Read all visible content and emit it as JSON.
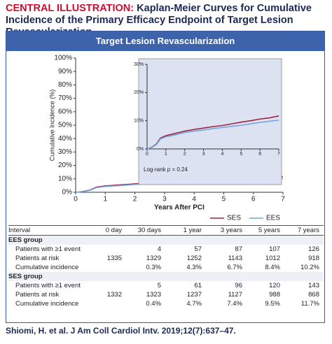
{
  "header": {
    "label": "CENTRAL ILLUSTRATION:",
    "title": "Kaplan-Meier Curves for Cumulative Incidence of the Primary Efficacy Endpoint of Target Lesion Revascularization"
  },
  "panel_title": "Target Lesion Revascularization",
  "chart_data": [
    {
      "type": "line",
      "x": [
        0,
        0.1,
        0.3,
        0.5,
        0.7,
        1,
        1.5,
        2,
        2.5,
        3,
        3.5,
        4,
        4.5,
        5,
        5.5,
        6,
        6.5,
        7
      ],
      "series": [
        {
          "name": "SES",
          "color": "#a3213e",
          "values": [
            0,
            0.2,
            0.8,
            1.8,
            3.8,
            4.7,
            5.5,
            6.3,
            6.9,
            7.4,
            7.9,
            8.3,
            8.9,
            9.5,
            10.0,
            10.6,
            11.0,
            11.7
          ]
        },
        {
          "name": "EES",
          "color": "#6fa8dc",
          "values": [
            0,
            0.2,
            0.7,
            1.6,
            3.5,
            4.3,
            5.0,
            5.8,
            6.3,
            6.7,
            7.2,
            7.6,
            8.0,
            8.4,
            8.9,
            9.4,
            9.8,
            10.2
          ]
        }
      ],
      "xlim": [
        0,
        7
      ],
      "ylim": [
        0,
        100
      ],
      "xticks": [
        0,
        1,
        2,
        3,
        4,
        5,
        6,
        7
      ],
      "yticks": [
        {
          "value": 0,
          "label": "0%"
        },
        {
          "value": 10,
          "label": "10%"
        },
        {
          "value": 20,
          "label": "20%"
        },
        {
          "value": 30,
          "label": "30%"
        },
        {
          "value": 40,
          "label": "40%"
        },
        {
          "value": 50,
          "label": "50%"
        },
        {
          "value": 60,
          "label": "60%"
        },
        {
          "value": 70,
          "label": "70%"
        },
        {
          "value": 80,
          "label": "80%"
        },
        {
          "value": 90,
          "label": "90%"
        },
        {
          "value": 100,
          "label": "100%"
        }
      ],
      "x_label": "Years After PCI",
      "y_label": "Cumulative Incidence (%)",
      "legend": "bottom-right"
    },
    {
      "type": "line",
      "x": [
        0,
        0.1,
        0.3,
        0.5,
        0.7,
        1,
        1.5,
        2,
        2.5,
        3,
        3.5,
        4,
        4.5,
        5,
        5.5,
        6,
        6.5,
        7
      ],
      "series": [
        {
          "name": "SES",
          "color": "#a3213e",
          "values": [
            0,
            0.2,
            0.8,
            1.8,
            3.8,
            4.7,
            5.5,
            6.3,
            6.9,
            7.4,
            7.9,
            8.3,
            8.9,
            9.5,
            10.0,
            10.6,
            11.0,
            11.7
          ]
        },
        {
          "name": "EES",
          "color": "#6fa8dc",
          "values": [
            0,
            0.2,
            0.7,
            1.6,
            3.5,
            4.3,
            5.0,
            5.8,
            6.3,
            6.7,
            7.2,
            7.6,
            8.0,
            8.4,
            8.9,
            9.4,
            9.8,
            10.2
          ]
        }
      ],
      "xlim": [
        0,
        7
      ],
      "ylim": [
        0,
        30
      ],
      "xticks": [
        0,
        1,
        2,
        3,
        4,
        5,
        6,
        7
      ],
      "yticks": [
        {
          "value": 0,
          "label": "0%"
        },
        {
          "value": 10,
          "label": "10%"
        },
        {
          "value": 20,
          "label": "20%"
        },
        {
          "value": 30,
          "label": "30%"
        }
      ],
      "annotation": "Log-rank p = 0.24",
      "background": "#dde2f2"
    }
  ],
  "table": {
    "header": [
      "Interval",
      "0 day",
      "30 days",
      "1 year",
      "3 years",
      "5 years",
      "7 years"
    ],
    "rows": [
      [
        "EES group"
      ],
      [
        "Patients with ≥1 event",
        null,
        4,
        57,
        87,
        107,
        126
      ],
      [
        "Patients at risk",
        1335,
        1329,
        1252,
        1143,
        1012,
        918
      ],
      [
        "Cumulative incidence",
        null,
        "0.3%",
        "4.3%",
        "6.7%",
        "8.4%",
        "10.2%"
      ],
      [
        "SES group"
      ],
      [
        "Patients with ≥1 event",
        null,
        5,
        61,
        96,
        120,
        143
      ],
      [
        "Patients at risk",
        1332,
        1323,
        1237,
        1127,
        988,
        868
      ],
      [
        "Cumulative incidence",
        null,
        "0.4%",
        "4.7%",
        "7.4%",
        "9.5%",
        "11.7%"
      ]
    ]
  },
  "citation": "Shiomi, H. et al. J Am Coll Cardiol Intv. 2019;12(7):637–47."
}
